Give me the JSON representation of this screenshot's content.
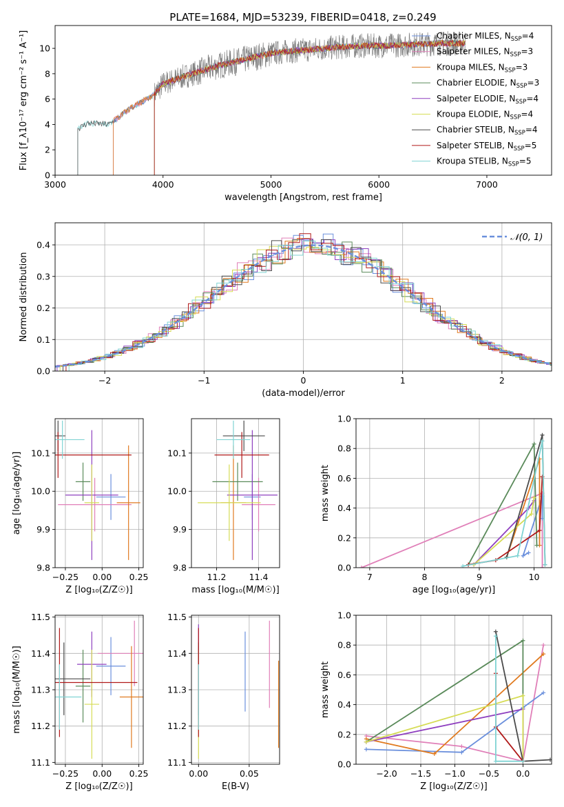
{
  "figure_title": "PLATE=1684, MJD=53239, FIBERID=0418, z=0.249",
  "colors": {
    "Chabrier MILES": "#6a8fdc",
    "Salpeter MILES": "#e07fb8",
    "Kroupa MILES": "#e07a1f",
    "Chabrier ELODIE": "#5a8a5a",
    "Salpeter ELODIE": "#8e3fbf",
    "Kroupa ELODIE": "#d6dc55",
    "Chabrier STELIB": "#4a4a4a",
    "Salpeter STELIB": "#b01818",
    "Kroupa STELIB": "#7fd3d3",
    "normal": "#6a8fdc",
    "data": "#808080"
  },
  "chart_data": [
    {
      "id": "spectrum",
      "type": "line",
      "xlabel": "wavelength [Angstrom, rest frame]",
      "ylabel": "Flux [f_λ10⁻¹⁷ erg cm⁻² s⁻¹ A⁻¹]",
      "xlim": [
        3000,
        7600
      ],
      "ylim": [
        0,
        11.8
      ],
      "xticks": [
        "3000",
        "4000",
        "5000",
        "6000",
        "7000"
      ],
      "yticks": [
        "0",
        "2",
        "4",
        "6",
        "8",
        "10"
      ],
      "legend": [
        {
          "name": "Chabrier MILES",
          "nssp": "4"
        },
        {
          "name": "Salpeter MILES",
          "nssp": "3"
        },
        {
          "name": "Kroupa MILES",
          "nssp": "3"
        },
        {
          "name": "Chabrier ELODIE",
          "nssp": "3"
        },
        {
          "name": "Salpeter ELODIE",
          "nssp": "4"
        },
        {
          "name": "Kroupa ELODIE",
          "nssp": "4"
        },
        {
          "name": "Chabrier STELIB",
          "nssp": "4"
        },
        {
          "name": "Salpeter STELIB",
          "nssp": "5"
        },
        {
          "name": "Kroupa STELIB",
          "nssp": "5"
        }
      ],
      "continuum": {
        "x": [
          3200,
          3300,
          3500,
          3700,
          3900,
          4000,
          4200,
          4500,
          4800,
          5000,
          5200,
          5500,
          5800,
          6000,
          6300,
          6600,
          6800
        ],
        "y": [
          3.6,
          4.1,
          4.0,
          5.3,
          6.2,
          7.2,
          7.8,
          8.6,
          9.2,
          9.6,
          9.8,
          10.0,
          10.2,
          10.2,
          10.3,
          10.4,
          10.4
        ]
      },
      "model_starts": {
        "Kroupa STELIB": 3210,
        "Chabrier STELIB": 3210,
        "Chabrier MILES": 3540,
        "Salpeter MILES": 3540,
        "Kroupa MILES": 3540,
        "Chabrier ELODIE": 3920,
        "Salpeter ELODIE": 3920,
        "Kroupa ELODIE": 3920,
        "Salpeter STELIB": 3920
      },
      "data_range": [
        3920,
        6800
      ]
    },
    {
      "id": "residuals",
      "type": "line",
      "xlabel": "(data-model)/error",
      "ylabel": "Normed distribution",
      "xlim": [
        -2.5,
        2.5
      ],
      "ylim": [
        0,
        0.47
      ],
      "xticks": [
        "−2",
        "−1",
        "0",
        "1",
        "2"
      ],
      "yticks": [
        "0.0",
        "0.1",
        "0.2",
        "0.3",
        "0.4"
      ],
      "legend": "𝒩(0, 1)",
      "normal": {
        "mean": 0.1,
        "sigma": 1.0
      }
    },
    {
      "id": "age_vs_Z",
      "type": "scatter",
      "xlabel": "Z [log₁₀(Z/Z☉)]",
      "ylabel": "age [log₁₀(age/yr)]",
      "xlim": [
        -0.32,
        0.28
      ],
      "ylim": [
        9.8,
        10.19
      ],
      "xticks": [
        "−0.25",
        "0.00",
        "0.25"
      ],
      "yticks": [
        "9.8",
        "9.9",
        "10.0",
        "10.1"
      ],
      "points": [
        {
          "series": "Chabrier MILES",
          "x": 0.06,
          "xerr": 0.1,
          "y": 9.985,
          "yerr": 0.06
        },
        {
          "series": "Salpeter MILES",
          "x": -0.05,
          "xerr": 0.25,
          "y": 9.965,
          "yerr": 0.07
        },
        {
          "series": "Kroupa MILES",
          "x": 0.18,
          "xerr": 0.08,
          "y": 9.97,
          "yerr": 0.15
        },
        {
          "series": "Chabrier ELODIE",
          "x": -0.13,
          "xerr": 0.05,
          "y": 10.025,
          "yerr": 0.05
        },
        {
          "series": "Salpeter ELODIE",
          "x": -0.07,
          "xerr": 0.18,
          "y": 9.99,
          "yerr": 0.17
        },
        {
          "series": "Kroupa ELODIE",
          "x": -0.07,
          "xerr": 0.05,
          "y": 9.97,
          "yerr": 0.1
        },
        {
          "series": "Chabrier STELIB",
          "x": -0.3,
          "xerr": 0.05,
          "y": 10.145,
          "yerr": 0.04
        },
        {
          "series": "Salpeter STELIB",
          "x": -0.3,
          "xerr": 0.5,
          "y": 10.095,
          "yerr": 0.06
        },
        {
          "series": "Kroupa STELIB",
          "x": -0.27,
          "xerr": 0.15,
          "y": 10.135,
          "yerr": 0.05
        }
      ]
    },
    {
      "id": "age_vs_mass",
      "type": "scatter",
      "xlabel": "mass [log₁₀(M/M☉)]",
      "ylabel": "",
      "xlim": [
        11.08,
        11.5
      ],
      "ylim": [
        9.8,
        10.19
      ],
      "xticks": [
        "11.2",
        "11.4"
      ],
      "yticks": [
        "9.8",
        "9.9",
        "10.0",
        "10.1"
      ],
      "points": [
        {
          "series": "Chabrier MILES",
          "x": 11.37,
          "xerr": 0.04,
          "y": 9.985,
          "yerr": 0.06
        },
        {
          "series": "Salpeter MILES",
          "x": 11.4,
          "xerr": 0.08,
          "y": 9.965,
          "yerr": 0.07
        },
        {
          "series": "Kroupa MILES",
          "x": 11.28,
          "xerr": 0.06,
          "y": 9.97,
          "yerr": 0.15
        },
        {
          "series": "Chabrier ELODIE",
          "x": 11.3,
          "xerr": 0.12,
          "y": 10.025,
          "yerr": 0.05
        },
        {
          "series": "Salpeter ELODIE",
          "x": 11.37,
          "xerr": 0.12,
          "y": 9.99,
          "yerr": 0.17
        },
        {
          "series": "Kroupa ELODIE",
          "x": 11.26,
          "xerr": 0.15,
          "y": 9.97,
          "yerr": 0.1
        },
        {
          "series": "Chabrier STELIB",
          "x": 11.33,
          "xerr": 0.1,
          "y": 10.145,
          "yerr": 0.04
        },
        {
          "series": "Salpeter STELIB",
          "x": 11.32,
          "xerr": 0.13,
          "y": 10.095,
          "yerr": 0.06
        },
        {
          "series": "Kroupa STELIB",
          "x": 11.28,
          "xerr": 0.08,
          "y": 10.135,
          "yerr": 0.05
        }
      ]
    },
    {
      "id": "mass_weight_vs_age",
      "type": "line",
      "xlabel": "age [log₁₀(age/yr)]",
      "ylabel": "mass weight",
      "xlim": [
        6.75,
        10.32
      ],
      "ylim": [
        0,
        1.0
      ],
      "xticks": [
        "7",
        "8",
        "9",
        "10"
      ],
      "yticks": [
        "0.0",
        "0.2",
        "0.4",
        "0.6",
        "0.8",
        "1.0"
      ],
      "series": [
        {
          "name": "Salpeter MILES",
          "x": [
            6.85,
            10.15,
            10.15
          ],
          "y": [
            0.0,
            0.5,
            0.0
          ]
        },
        {
          "name": "Chabrier MILES",
          "x": [
            9.9,
            9.8,
            10.15,
            10.15
          ],
          "y": [
            0.1,
            0.08,
            0.48,
            0.33
          ]
        },
        {
          "name": "Kroupa MILES",
          "x": [
            9.5,
            10.1,
            10.1
          ],
          "y": [
            0.07,
            0.73,
            0.15
          ]
        },
        {
          "name": "Chabrier ELODIE",
          "x": [
            8.8,
            10.0,
            10.05
          ],
          "y": [
            0.02,
            0.83,
            0.15
          ]
        },
        {
          "name": "Salpeter ELODIE",
          "x": [
            8.9,
            9.9,
            10.0
          ],
          "y": [
            0.02,
            0.4,
            0.45
          ]
        },
        {
          "name": "Kroupa ELODIE",
          "x": [
            8.9,
            9.95,
            10.0
          ],
          "y": [
            0.02,
            0.36,
            0.47
          ]
        },
        {
          "name": "Chabrier STELIB",
          "x": [
            9.5,
            10.15,
            10.2
          ],
          "y": [
            0.07,
            0.89,
            0.02
          ]
        },
        {
          "name": "Salpeter STELIB",
          "x": [
            8.8,
            9.3,
            10.1,
            10.15
          ],
          "y": [
            0.02,
            0.05,
            0.25,
            0.61
          ]
        },
        {
          "name": "Kroupa STELIB",
          "x": [
            8.7,
            9.7,
            10.15,
            10.2
          ],
          "y": [
            0.01,
            0.08,
            0.85,
            0.02
          ]
        }
      ]
    },
    {
      "id": "mass_vs_Z",
      "type": "scatter",
      "xlabel": "Z [log₁₀(Z/Z☉)]",
      "ylabel": "mass [log₁₀(M/M☉)]",
      "xlim": [
        -0.32,
        0.28
      ],
      "ylim": [
        11.095,
        11.505
      ],
      "xticks": [
        "−0.25",
        "0.00",
        "0.25"
      ],
      "yticks": [
        "11.1",
        "11.2",
        "11.3",
        "11.4",
        "11.5"
      ],
      "points": [
        {
          "series": "Chabrier MILES",
          "x": 0.06,
          "xerr": 0.1,
          "y": 11.365,
          "yerr": 0.08
        },
        {
          "series": "Salpeter MILES",
          "x": 0.22,
          "xerr": 0.25,
          "y": 11.4,
          "yerr": 0.09
        },
        {
          "series": "Kroupa MILES",
          "x": 0.2,
          "xerr": 0.08,
          "y": 11.28,
          "yerr": 0.14
        },
        {
          "series": "Chabrier ELODIE",
          "x": -0.13,
          "xerr": 0.05,
          "y": 11.31,
          "yerr": 0.1
        },
        {
          "series": "Salpeter ELODIE",
          "x": -0.07,
          "xerr": 0.1,
          "y": 11.37,
          "yerr": 0.09
        },
        {
          "series": "Kroupa ELODIE",
          "x": -0.07,
          "xerr": 0.05,
          "y": 11.26,
          "yerr": 0.15
        },
        {
          "series": "Chabrier STELIB",
          "x": -0.26,
          "xerr": 0.18,
          "y": 11.33,
          "yerr": 0.1
        },
        {
          "series": "Salpeter STELIB",
          "x": -0.29,
          "xerr": 0.53,
          "y": 11.32,
          "yerr": 0.15
        },
        {
          "series": "Kroupa STELIB",
          "x": -0.29,
          "xerr": 0.15,
          "y": 11.28,
          "yerr": 0.09
        }
      ]
    },
    {
      "id": "mass_vs_ebv",
      "type": "scatter",
      "xlabel": "E(B-V)",
      "ylabel": "",
      "xlim": [
        -0.007,
        0.08
      ],
      "ylim": [
        11.095,
        11.505
      ],
      "xticks": [
        "0.00",
        "0.05"
      ],
      "yticks": [
        "11.1",
        "11.2",
        "11.3",
        "11.4",
        "11.5"
      ],
      "points": [
        {
          "series": "Chabrier MILES",
          "x": 0.046,
          "y": 11.35,
          "yerr": 0.11
        },
        {
          "series": "Salpeter MILES",
          "x": 0.07,
          "y": 11.37,
          "yerr": 0.12
        },
        {
          "series": "Kroupa MILES",
          "x": 0.079,
          "y": 11.26,
          "yerr": 0.12
        },
        {
          "series": "Chabrier ELODIE",
          "x": 0.0,
          "y": 11.32,
          "yerr": 0.1
        },
        {
          "series": "Salpeter ELODIE",
          "x": 0.0,
          "y": 11.37,
          "yerr": 0.11
        },
        {
          "series": "Kroupa ELODIE",
          "x": 0.0,
          "y": 11.26,
          "yerr": 0.15
        },
        {
          "series": "Chabrier STELIB",
          "x": 0.0,
          "y": 11.33,
          "yerr": 0.1
        },
        {
          "series": "Salpeter STELIB",
          "x": 0.0,
          "y": 11.32,
          "yerr": 0.15
        },
        {
          "series": "Kroupa STELIB",
          "x": 0.0,
          "y": 11.28,
          "yerr": 0.09
        }
      ]
    },
    {
      "id": "mass_weight_vs_Z",
      "type": "line",
      "xlabel": "Z [log₁₀(Z/Z☉)]",
      "ylabel": "mass weight",
      "xlim": [
        -2.45,
        0.42
      ],
      "ylim": [
        0,
        1.0
      ],
      "xticks": [
        "−2.0",
        "−1.5",
        "−1.0",
        "−0.5",
        "0.0"
      ],
      "yticks": [
        "0.0",
        "0.2",
        "0.4",
        "0.6",
        "0.8",
        "1.0"
      ],
      "series": [
        {
          "name": "Salpeter MILES",
          "x": [
            -2.3,
            -0.9,
            0.0,
            0.3
          ],
          "y": [
            0.19,
            0.12,
            0.02,
            0.8
          ]
        },
        {
          "name": "Chabrier MILES",
          "x": [
            -2.3,
            -0.9,
            0.0,
            0.3
          ],
          "y": [
            0.1,
            0.08,
            0.38,
            0.48
          ]
        },
        {
          "name": "Kroupa MILES",
          "x": [
            -2.3,
            -1.3,
            0.3
          ],
          "y": [
            0.17,
            0.07,
            0.74
          ]
        },
        {
          "name": "Chabrier ELODIE",
          "x": [
            -2.3,
            0.0,
            0.0
          ],
          "y": [
            0.15,
            0.83,
            0.02
          ]
        },
        {
          "name": "Salpeter ELODIE",
          "x": [
            -2.3,
            0.0,
            0.0
          ],
          "y": [
            0.15,
            0.37,
            0.02
          ]
        },
        {
          "name": "Kroupa ELODIE",
          "x": [
            -2.3,
            0.0,
            0.0
          ],
          "y": [
            0.15,
            0.46,
            0.02
          ]
        },
        {
          "name": "Chabrier STELIB",
          "x": [
            -0.4,
            0.0,
            0.4
          ],
          "y": [
            0.89,
            0.02,
            0.03
          ]
        },
        {
          "name": "Salpeter STELIB",
          "x": [
            -0.4,
            -0.4,
            0.0
          ],
          "y": [
            0.61,
            0.25,
            0.02
          ]
        },
        {
          "name": "Kroupa STELIB",
          "x": [
            -0.4,
            -0.4,
            0.0
          ],
          "y": [
            0.86,
            0.02,
            0.02
          ]
        }
      ]
    }
  ]
}
